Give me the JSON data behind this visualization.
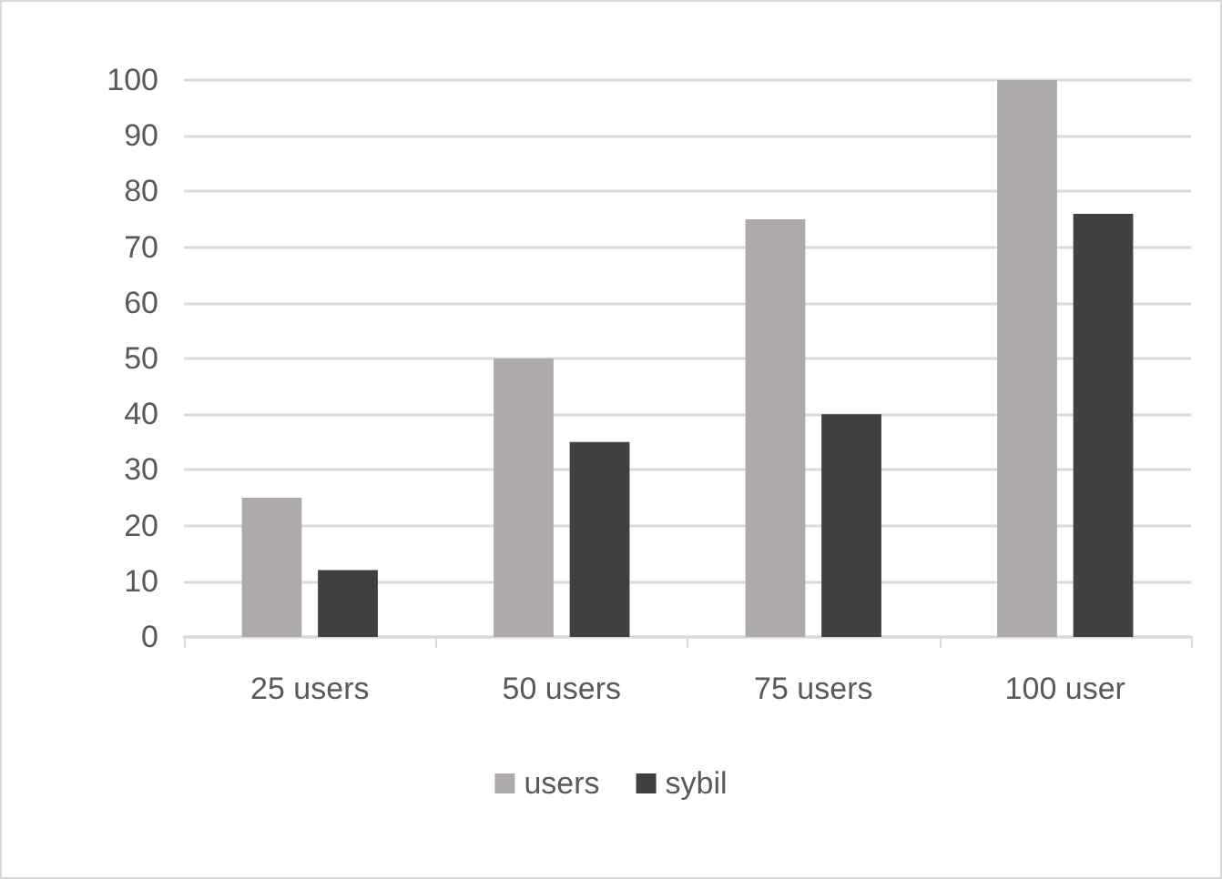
{
  "chart_data": {
    "type": "bar",
    "categories": [
      "25 users",
      "50 users",
      "75 users",
      "100 user"
    ],
    "series": [
      {
        "name": "users",
        "color": "#aeaaaa",
        "values": [
          25,
          50,
          75,
          100
        ]
      },
      {
        "name": "sybil",
        "color": "#404040",
        "values": [
          12,
          35,
          40,
          76
        ]
      }
    ],
    "ylim": [
      0,
      100
    ],
    "yticks": [
      0,
      10,
      20,
      30,
      40,
      50,
      60,
      70,
      80,
      90,
      100
    ],
    "grid": "y",
    "legend": "bottom"
  }
}
